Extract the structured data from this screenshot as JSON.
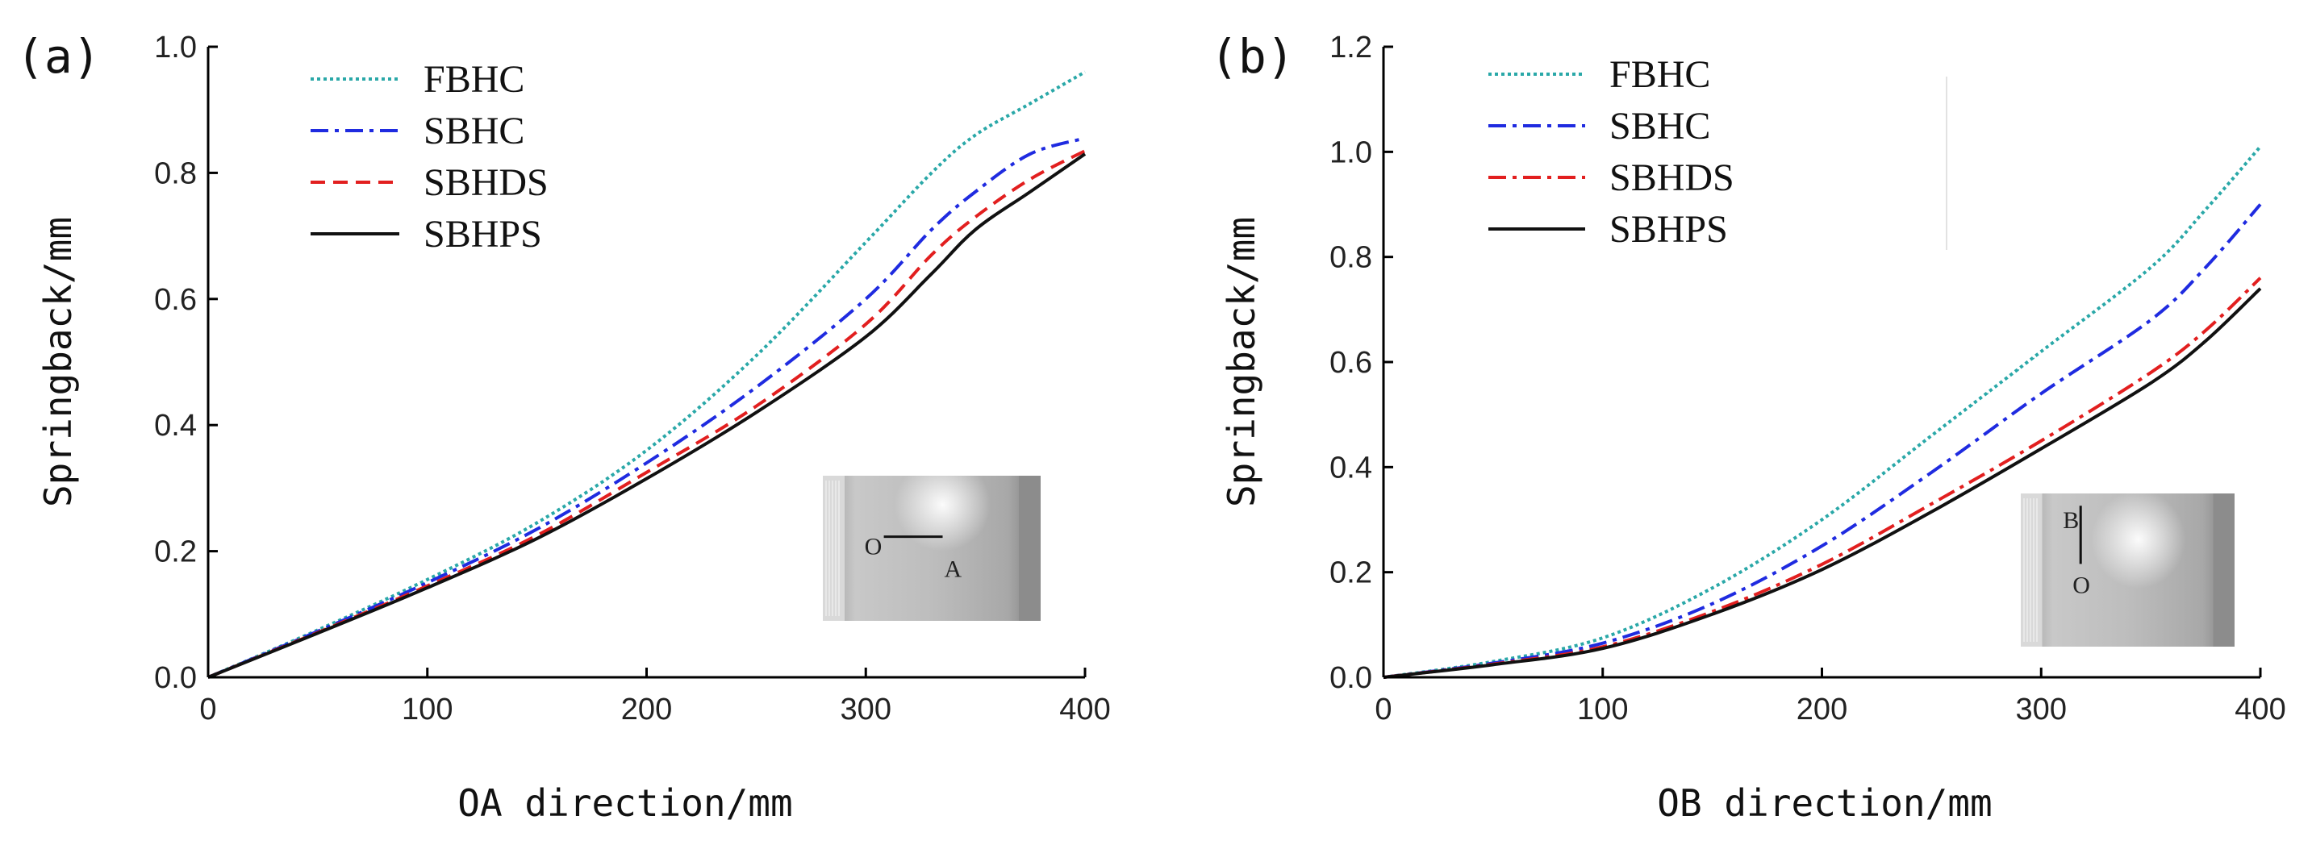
{
  "chart_data": [
    {
      "type": "line",
      "panel_label": "(a)",
      "xlabel": "OA direction/mm",
      "ylabel": "Springback/mm",
      "xlim": [
        0,
        400
      ],
      "ylim": [
        0,
        1.0
      ],
      "xticks": [
        "0",
        "100",
        "200",
        "300",
        "400"
      ],
      "yticks": [
        "0.0",
        "0.2",
        "0.4",
        "0.6",
        "0.8",
        "1.0"
      ],
      "legend_position": "top-left",
      "inset": {
        "label_start": "O",
        "label_end": "A",
        "orientation": "horizontal"
      },
      "x": [
        0,
        50,
        100,
        150,
        200,
        250,
        300,
        330,
        350,
        375,
        400
      ],
      "series": [
        {
          "name": "FBHC",
          "color": "#2aa8a8",
          "style": "dotted",
          "values": [
            0,
            0.075,
            0.155,
            0.245,
            0.36,
            0.51,
            0.69,
            0.8,
            0.86,
            0.91,
            0.96
          ]
        },
        {
          "name": "SBHC",
          "color": "#1f2be0",
          "style": "dashdot",
          "values": [
            0,
            0.073,
            0.15,
            0.235,
            0.34,
            0.46,
            0.6,
            0.71,
            0.77,
            0.83,
            0.855
          ]
        },
        {
          "name": "SBHDS",
          "color": "#e21f1f",
          "style": "dashed",
          "values": [
            0,
            0.071,
            0.145,
            0.225,
            0.325,
            0.43,
            0.56,
            0.67,
            0.73,
            0.79,
            0.835
          ]
        },
        {
          "name": "SBHPS",
          "color": "#111111",
          "style": "solid",
          "values": [
            0,
            0.07,
            0.142,
            0.22,
            0.315,
            0.42,
            0.54,
            0.64,
            0.71,
            0.77,
            0.83
          ]
        }
      ]
    },
    {
      "type": "line",
      "panel_label": "(b)",
      "xlabel": "OB direction/mm",
      "ylabel": "Springback/mm",
      "xlim": [
        0,
        400
      ],
      "ylim": [
        0,
        1.2
      ],
      "xticks": [
        "0",
        "100",
        "200",
        "300",
        "400"
      ],
      "yticks": [
        "0.0",
        "0.2",
        "0.4",
        "0.6",
        "0.8",
        "1.0",
        "1.2"
      ],
      "legend_position": "top-left",
      "inset": {
        "label_start": "O",
        "label_end": "B",
        "orientation": "vertical"
      },
      "x": [
        0,
        50,
        100,
        150,
        200,
        250,
        300,
        350,
        375,
        400
      ],
      "series": [
        {
          "name": "FBHC",
          "color": "#2aa8a8",
          "style": "dotted",
          "values": [
            0,
            0.03,
            0.075,
            0.17,
            0.3,
            0.46,
            0.62,
            0.78,
            0.89,
            1.01
          ]
        },
        {
          "name": "SBHC",
          "color": "#1f2be0",
          "style": "dashdot",
          "values": [
            0,
            0.027,
            0.065,
            0.14,
            0.25,
            0.39,
            0.54,
            0.68,
            0.78,
            0.9
          ]
        },
        {
          "name": "SBHDS",
          "color": "#e21f1f",
          "style": "dashdot",
          "values": [
            0,
            0.025,
            0.058,
            0.125,
            0.215,
            0.33,
            0.45,
            0.58,
            0.66,
            0.76
          ]
        },
        {
          "name": "SBHPS",
          "color": "#111111",
          "style": "solid",
          "values": [
            0,
            0.024,
            0.055,
            0.12,
            0.205,
            0.315,
            0.435,
            0.56,
            0.64,
            0.74
          ]
        }
      ]
    }
  ]
}
